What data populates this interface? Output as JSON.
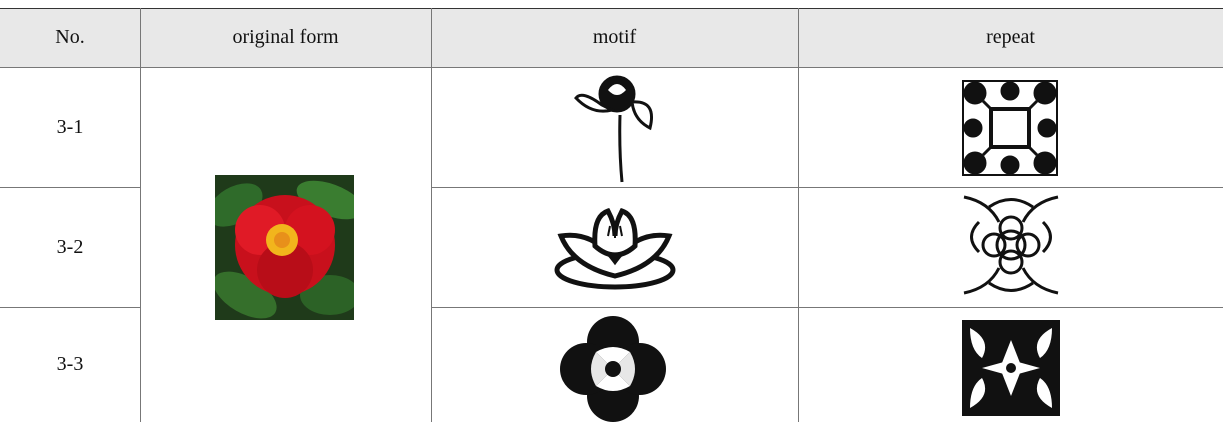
{
  "table": {
    "header": [
      "No.",
      "original form",
      "motif",
      "repeat"
    ],
    "rows": [
      [
        "3-1"
      ],
      [
        "3-2"
      ],
      [
        "3-3"
      ]
    ]
  }
}
